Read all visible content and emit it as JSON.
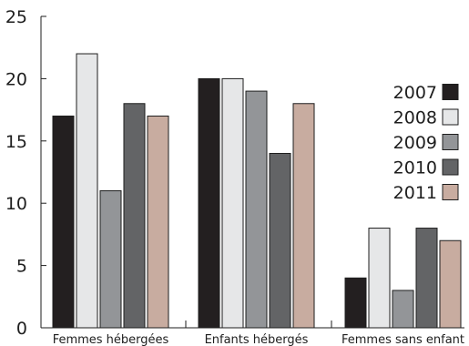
{
  "chart_data": {
    "type": "bar",
    "title": "",
    "xlabel": "",
    "ylabel": "",
    "ylim": [
      0,
      25
    ],
    "yticks": [
      0,
      5,
      10,
      15,
      20,
      25
    ],
    "grid": false,
    "legend_position": "right",
    "categories": [
      "Femmes hébergées",
      "Enfants hébergés",
      "Femmes sans enfant"
    ],
    "series": [
      {
        "name": "2007",
        "color": "#231f20",
        "values": [
          17,
          20,
          4
        ]
      },
      {
        "name": "2008",
        "color": "#e6e7e8",
        "values": [
          22,
          20,
          8
        ]
      },
      {
        "name": "2009",
        "color": "#939598",
        "values": [
          11,
          19,
          3
        ]
      },
      {
        "name": "2010",
        "color": "#636466",
        "values": [
          18,
          14,
          8
        ]
      },
      {
        "name": "2011",
        "color": "#c8aca0",
        "values": [
          17,
          18,
          7
        ]
      }
    ]
  }
}
